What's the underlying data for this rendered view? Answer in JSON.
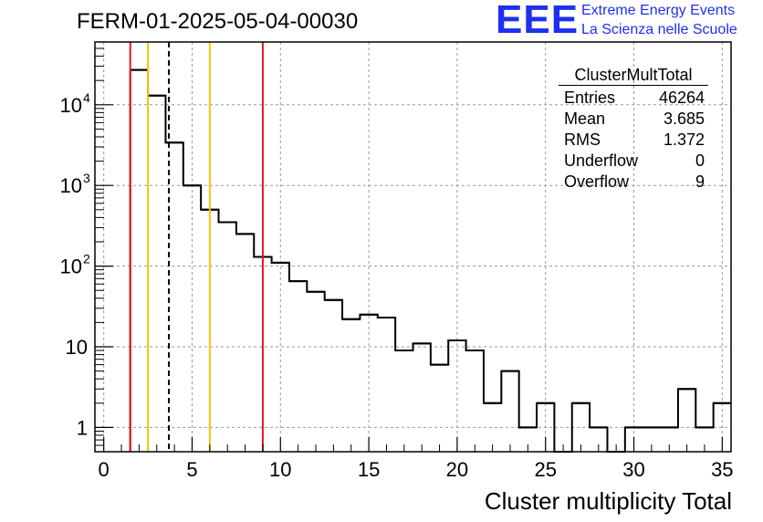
{
  "title": "FERM-01-2025-05-04-00030",
  "logo": {
    "text": "EEE",
    "line1": "Extreme Energy Events",
    "line2": "La Scienza nelle Scuole"
  },
  "stats": {
    "name": "ClusterMultTotal",
    "rows": [
      {
        "label": "Entries",
        "value": "46264"
      },
      {
        "label": "Mean",
        "value": "3.685"
      },
      {
        "label": "RMS",
        "value": "1.372"
      },
      {
        "label": "Underflow",
        "value": "0"
      },
      {
        "label": "Overflow",
        "value": "9"
      }
    ]
  },
  "chart_data": {
    "type": "bar",
    "histogram": true,
    "title": "FERM-01-2025-05-04-00030",
    "xlabel": "Cluster multiplicity Total",
    "ylabel": "",
    "xlim": [
      -0.5,
      35.5
    ],
    "ylim": [
      0.5,
      60000
    ],
    "yscale": "log",
    "grid": true,
    "bin_width": 1,
    "bins_x": [
      2,
      3,
      4,
      5,
      6,
      7,
      8,
      9,
      10,
      11,
      12,
      13,
      14,
      15,
      16,
      17,
      18,
      19,
      20,
      21,
      22,
      23,
      24,
      25,
      26,
      27,
      28,
      29,
      30,
      31,
      32,
      33,
      34,
      35
    ],
    "values": [
      27000,
      13000,
      3400,
      1000,
      500,
      350,
      250,
      130,
      110,
      65,
      48,
      38,
      22,
      25,
      23,
      9,
      11,
      6,
      12,
      9,
      2,
      5,
      1,
      2,
      0,
      2,
      1,
      0,
      1,
      1,
      1,
      3,
      1,
      2
    ],
    "xticks": [
      0,
      5,
      10,
      15,
      20,
      25,
      30,
      35
    ],
    "yticks": [
      {
        "value": 1,
        "label": "1"
      },
      {
        "value": 10,
        "label": "10"
      },
      {
        "value": 100,
        "label": "10",
        "exp": "2"
      },
      {
        "value": 1000,
        "label": "10",
        "exp": "3"
      },
      {
        "value": 10000,
        "label": "10",
        "exp": "4"
      }
    ],
    "markers": [
      {
        "x": 1.5,
        "color": "#e3191c",
        "style": "solid"
      },
      {
        "x": 2.5,
        "color": "#f5c400",
        "style": "solid"
      },
      {
        "x": 3.685,
        "color": "#000000",
        "style": "dashed"
      },
      {
        "x": 6.0,
        "color": "#f5c400",
        "style": "solid"
      },
      {
        "x": 9.0,
        "color": "#e3191c",
        "style": "solid"
      }
    ]
  }
}
